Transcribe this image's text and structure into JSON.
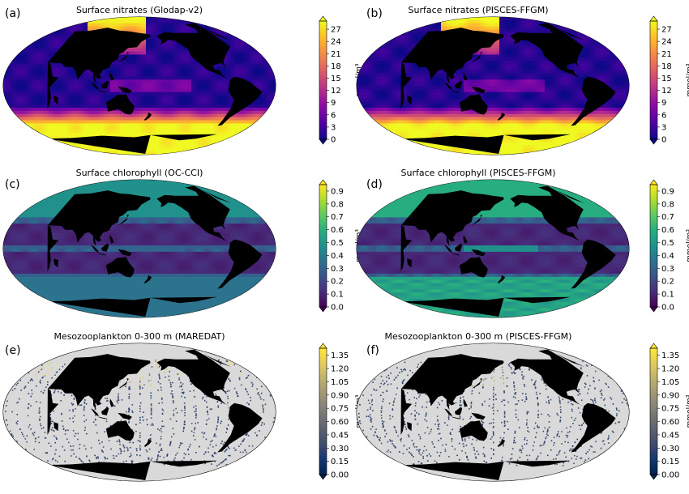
{
  "colors": {
    "land": "#000000",
    "missing": "#d9d9d9",
    "plasma": [
      "#0d0887",
      "#5302a3",
      "#8b0aa5",
      "#b83289",
      "#db5c68",
      "#f48849",
      "#febc2a",
      "#f0f921"
    ],
    "viridis": [
      "#440154",
      "#472d7b",
      "#3b528b",
      "#2c728e",
      "#21918c",
      "#28ae80",
      "#5ec962",
      "#addc30",
      "#fde725"
    ],
    "cividis": [
      "#00224e",
      "#123570",
      "#3b496c",
      "#575d6d",
      "#707173",
      "#8a8779",
      "#a69d75",
      "#c4b56c",
      "#e4cf5b",
      "#fee838"
    ]
  },
  "chart_data": [
    {
      "type": "heatmap",
      "panel_label": "(a)",
      "title": "Surface nitrates (Glodap-v2)",
      "colormap": "plasma",
      "unit_label": "mmol/m³",
      "vmin": 0,
      "vmax": 29,
      "ticks": [
        0,
        3,
        6,
        9,
        12,
        15,
        18,
        21,
        24,
        27
      ],
      "tick_labels": [
        "0",
        "3",
        "6",
        "9",
        "12",
        "15",
        "18",
        "21",
        "24",
        "27"
      ],
      "field": "nitrate",
      "sparse": false
    },
    {
      "type": "heatmap",
      "panel_label": "(b)",
      "title": "Surface nitrates (PISCES-FFGM)",
      "colormap": "plasma",
      "unit_label": "mmol/m³",
      "vmin": 0,
      "vmax": 29,
      "ticks": [
        0,
        3,
        6,
        9,
        12,
        15,
        18,
        21,
        24,
        27
      ],
      "tick_labels": [
        "0",
        "3",
        "6",
        "9",
        "12",
        "15",
        "18",
        "21",
        "24",
        "27"
      ],
      "field": "nitrate",
      "sparse": false
    },
    {
      "type": "heatmap",
      "panel_label": "(c)",
      "title": "Surface chlorophyll (OC-CCI)",
      "colormap": "viridis",
      "unit_label": "mmol/m³",
      "vmin": 0,
      "vmax": 0.95,
      "ticks": [
        0,
        0.1,
        0.2,
        0.3,
        0.4,
        0.5,
        0.6,
        0.7,
        0.8,
        0.9
      ],
      "tick_labels": [
        "0.0",
        "0.1",
        "0.2",
        "0.3",
        "0.4",
        "0.5",
        "0.6",
        "0.7",
        "0.8",
        "0.9"
      ],
      "field": "chlorophyll",
      "sparse": false
    },
    {
      "type": "heatmap",
      "panel_label": "(d)",
      "title": "Surface chlorophyll (PISCES-FFGM)",
      "colormap": "viridis",
      "unit_label": "mmol/m³",
      "vmin": 0,
      "vmax": 0.95,
      "ticks": [
        0,
        0.1,
        0.2,
        0.3,
        0.4,
        0.5,
        0.6,
        0.7,
        0.8,
        0.9
      ],
      "tick_labels": [
        "0.0",
        "0.1",
        "0.2",
        "0.3",
        "0.4",
        "0.5",
        "0.6",
        "0.7",
        "0.8",
        "0.9"
      ],
      "field": "chlorophyll",
      "sparse": false
    },
    {
      "type": "heatmap",
      "panel_label": "(e)",
      "title": "Mesozooplankton 0-300 m (MAREDAT)",
      "colormap": "cividis",
      "unit_label": "mmol/m³",
      "vmin": 0,
      "vmax": 1.43,
      "ticks": [
        0,
        0.15,
        0.3,
        0.45,
        0.6,
        0.75,
        0.9,
        1.05,
        1.2,
        1.35
      ],
      "tick_labels": [
        "0.00",
        "0.15",
        "0.30",
        "0.45",
        "0.60",
        "0.75",
        "0.90",
        "1.05",
        "1.20",
        "1.35"
      ],
      "field": "zoo",
      "sparse": true
    },
    {
      "type": "heatmap",
      "panel_label": "(f)",
      "title": "Mesozooplankton 0-300 m (PISCES-FFGM)",
      "colormap": "cividis",
      "unit_label": "mmol/m³",
      "vmin": 0,
      "vmax": 1.43,
      "ticks": [
        0,
        0.15,
        0.3,
        0.45,
        0.6,
        0.75,
        0.9,
        1.05,
        1.2,
        1.35
      ],
      "tick_labels": [
        "0.00",
        "0.15",
        "0.30",
        "0.45",
        "0.60",
        "0.75",
        "0.90",
        "1.05",
        "1.20",
        "1.35"
      ],
      "field": "zoo",
      "sparse": true
    }
  ]
}
